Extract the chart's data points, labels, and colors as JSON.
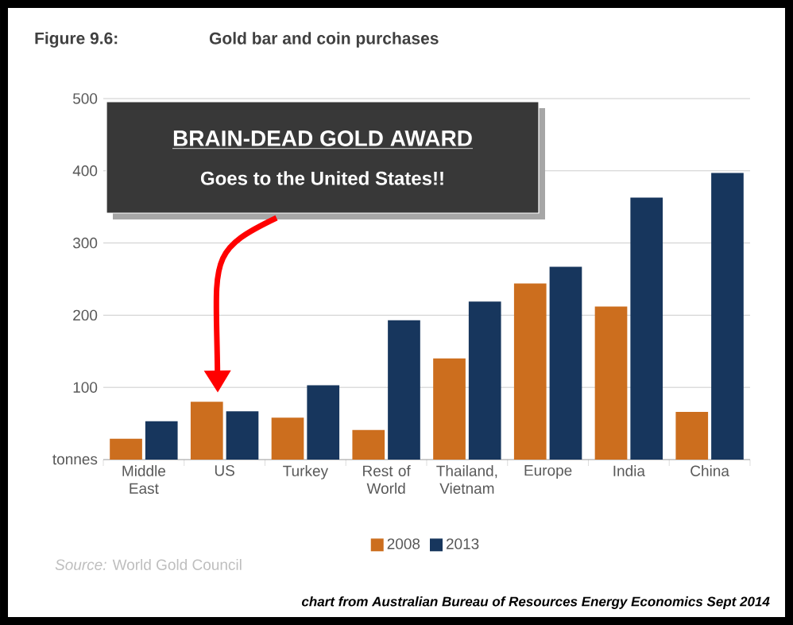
{
  "chart_data": {
    "type": "bar",
    "title": "Figure 9.6:",
    "subtitle": "Gold bar and coin purchases",
    "categories": [
      "Middle East",
      "US",
      "Turkey",
      "Rest of World",
      "Thailand, Vietnam",
      "Europe",
      "India",
      "China"
    ],
    "series": [
      {
        "name": "2008",
        "color": "#cc6e1e",
        "values": [
          29,
          80,
          58,
          41,
          140,
          244,
          212,
          66
        ]
      },
      {
        "name": "2013",
        "color": "#17365d",
        "values": [
          53,
          67,
          103,
          193,
          219,
          267,
          363,
          397
        ]
      }
    ],
    "ylim": [
      0,
      500
    ],
    "yticks": [
      {
        "value": 0,
        "label": "tonnes"
      },
      100,
      200,
      300,
      400,
      500
    ],
    "grid": "y",
    "legend": "bottom",
    "annotations": [
      "BRAIN-DEAD GOLD AWARD",
      "Goes to the United States!!",
      "*Source:* World Gold Council",
      "chart from Australian Bureau of Resources Energy Economics Sept 2014"
    ]
  }
}
